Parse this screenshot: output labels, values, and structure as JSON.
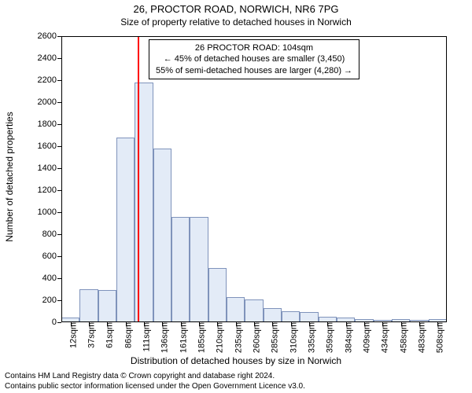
{
  "title": "26, PROCTOR ROAD, NORWICH, NR6 7PG",
  "subtitle": "Size of property relative to detached houses in Norwich",
  "ylabel": "Number of detached properties",
  "xlabel": "Distribution of detached houses by size in Norwich",
  "attribution_line1": "Contains HM Land Registry data © Crown copyright and database right 2024.",
  "attribution_line2": "Contains public sector information licensed under the Open Government Licence v3.0.",
  "chart": {
    "type": "histogram",
    "ylim": [
      0,
      2600
    ],
    "ytick_step": 200,
    "background_color": "#ffffff",
    "bar_fill": "#e3ebf7",
    "bar_border": "#7f93bb",
    "bar_border_width": 1,
    "marker_color": "#ff0000",
    "marker_x_category": "111sqm",
    "marker_offset_ratio": -0.28,
    "categories": [
      "12sqm",
      "37sqm",
      "61sqm",
      "86sqm",
      "111sqm",
      "136sqm",
      "161sqm",
      "185sqm",
      "210sqm",
      "235sqm",
      "260sqm",
      "285sqm",
      "310sqm",
      "335sqm",
      "359sqm",
      "384sqm",
      "409sqm",
      "434sqm",
      "458sqm",
      "483sqm",
      "508sqm"
    ],
    "values": [
      40,
      300,
      290,
      1680,
      2180,
      1580,
      960,
      960,
      490,
      230,
      210,
      130,
      100,
      90,
      50,
      40,
      30,
      20,
      30,
      20,
      30
    ],
    "bar_gap_ratio": 0.0
  },
  "annotation": {
    "line1": "26 PROCTOR ROAD: 104sqm",
    "line2": "← 45% of detached houses are smaller (3,450)",
    "line3": "55% of semi-detached houses are larger (4,280) →",
    "border_color": "#000000",
    "background_color": "#ffffff",
    "fontsize": 11
  }
}
